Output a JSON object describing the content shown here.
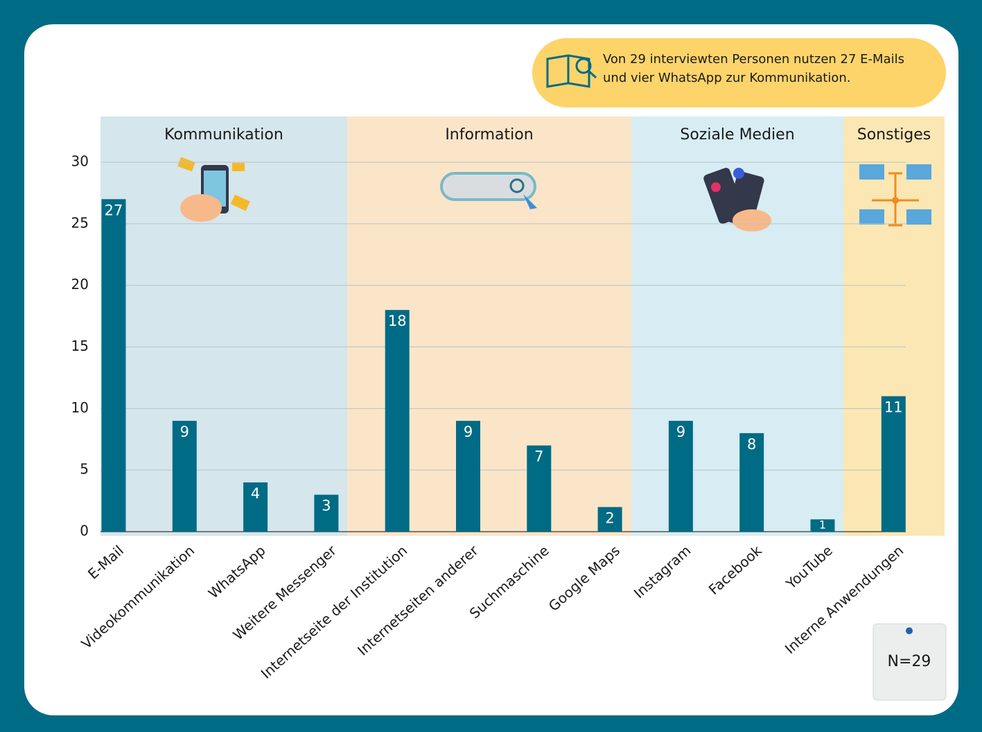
{
  "chart_data": {
    "type": "bar",
    "note": [
      "Von 29 interviewten Personen nutzen 27 E-Mails",
      "und vier WhatsApp zur Kommunikation."
    ],
    "sample_size": "N=29",
    "groups": [
      {
        "name": "Kommunikation",
        "color": "#d5e6ec"
      },
      {
        "name": "Information",
        "color": "#fbe5c8"
      },
      {
        "name": "Soziale Medien",
        "color": "#d7edf3"
      },
      {
        "name": "Sonstiges",
        "color": "#fbe7b4"
      }
    ],
    "categories": [
      "E-Mail",
      "Videokommunikation",
      "WhatsApp",
      "Weitere Messenger",
      "Internetseite der Institution",
      "Internetseiten anderer",
      "Suchmaschine",
      "Google Maps",
      "Instagram",
      "Facebook",
      "YouTube",
      "Interne Anwendungen"
    ],
    "values": [
      27,
      9,
      4,
      3,
      18,
      9,
      7,
      2,
      9,
      8,
      1,
      11
    ],
    "color": "#006b85",
    "ylim": [
      0,
      30
    ],
    "yticks": [
      0,
      5,
      10,
      15,
      20,
      25,
      30
    ],
    "grid": true
  }
}
